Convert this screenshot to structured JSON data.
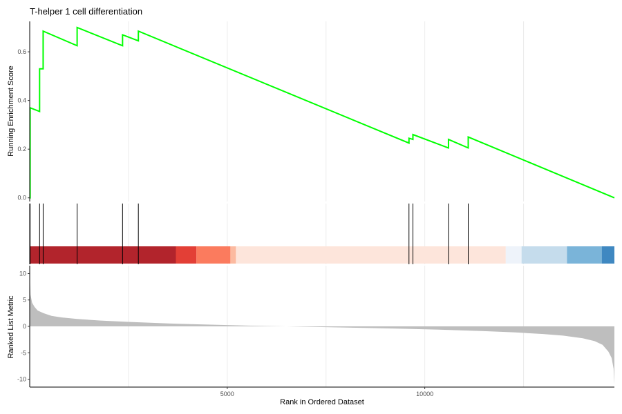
{
  "chart_data": {
    "type": "line",
    "title": "T-helper 1 cell differentiation",
    "xlabel": "Rank in Ordered Dataset",
    "xlim": [
      0,
      14800
    ],
    "x_ticks": [
      5000,
      10000
    ],
    "x_tick_labels": [
      "5000",
      "10000"
    ],
    "es_panel": {
      "ylabel": "Running Enrichment Score",
      "ylim": [
        -0.015,
        0.725
      ],
      "y_ticks": [
        0.0,
        0.2,
        0.4,
        0.6
      ],
      "y_tick_labels": [
        "0.0",
        "0.2",
        "0.4",
        "0.6"
      ],
      "series": [
        {
          "color": "#00ff00",
          "x": [
            0,
            10,
            10,
            250,
            250,
            340,
            340,
            1200,
            1200,
            2350,
            2350,
            2750,
            2750,
            9600,
            9600,
            9700,
            9700,
            10600,
            10600,
            11100,
            11100,
            14800
          ],
          "y": [
            0.0,
            0.0,
            0.37,
            0.355,
            0.53,
            0.53,
            0.685,
            0.625,
            0.7,
            0.625,
            0.67,
            0.645,
            0.685,
            0.225,
            0.245,
            0.24,
            0.26,
            0.205,
            0.24,
            0.205,
            0.25,
            0.0
          ]
        }
      ]
    },
    "gene_hits": [
      10,
      250,
      340,
      1200,
      2350,
      2750,
      9600,
      9700,
      10600,
      11100
    ],
    "color_band": [
      {
        "x0": 0,
        "x1": 3700,
        "color": "#b2242c"
      },
      {
        "x0": 3700,
        "x1": 4220,
        "color": "#e33f36"
      },
      {
        "x0": 4220,
        "x1": 5080,
        "color": "#fb7b5e"
      },
      {
        "x0": 5080,
        "x1": 5220,
        "color": "#fcbaa0"
      },
      {
        "x0": 5220,
        "x1": 12050,
        "color": "#fde5db"
      },
      {
        "x0": 12050,
        "x1": 12450,
        "color": "#eef3fa"
      },
      {
        "x0": 12450,
        "x1": 13600,
        "color": "#c5dcec"
      },
      {
        "x0": 13600,
        "x1": 14480,
        "color": "#7ab4d9"
      },
      {
        "x0": 14480,
        "x1": 14800,
        "color": "#3f88c1"
      }
    ],
    "ranked_panel": {
      "ylabel": "Ranked List Metric",
      "ylim": [
        -11.5,
        11.5
      ],
      "y_ticks": [
        10,
        5,
        0,
        -5,
        -10
      ],
      "y_tick_labels": [
        "10",
        "5",
        "0",
        "-5",
        "-10"
      ],
      "fill_color": "#bebebe",
      "profile_x": [
        0,
        20,
        60,
        120,
        200,
        350,
        550,
        800,
        1200,
        1800,
        2500,
        3500,
        4500,
        5500,
        6500,
        7500,
        8500,
        9500,
        10500,
        11500,
        12300,
        13000,
        13500,
        14000,
        14300,
        14500,
        14650,
        14730,
        14780,
        14800
      ],
      "profile_y": [
        10.0,
        6.0,
        4.5,
        3.7,
        3.0,
        2.5,
        2.0,
        1.7,
        1.4,
        1.1,
        0.85,
        0.55,
        0.35,
        0.15,
        0.0,
        -0.15,
        -0.3,
        -0.45,
        -0.65,
        -0.9,
        -1.15,
        -1.45,
        -1.75,
        -2.25,
        -2.8,
        -3.5,
        -4.8,
        -6.0,
        -8.0,
        -11.0
      ]
    },
    "grid": true
  }
}
